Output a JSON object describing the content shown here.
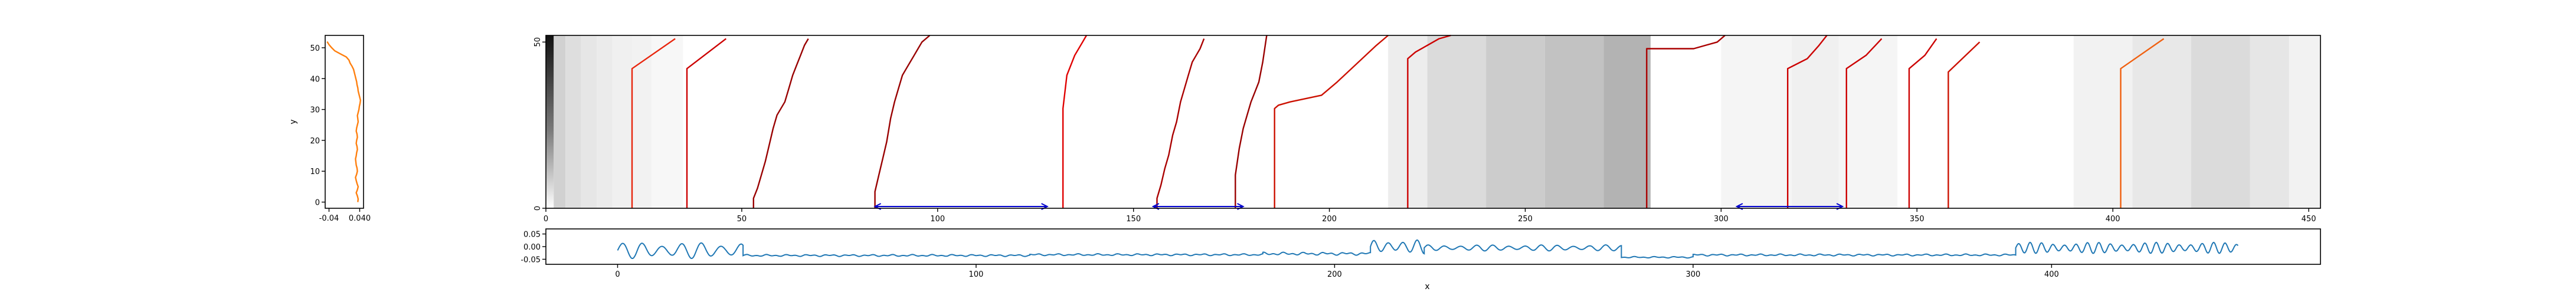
{
  "chart_data": [
    {
      "type": "line",
      "panel": "left-profile",
      "orientation": "vertical",
      "ylabel": "y",
      "xlabel": "",
      "ylim": [
        -2,
        54
      ],
      "xlim": [
        -0.05,
        0.05
      ],
      "x_ticks": [
        -0.04,
        0.04
      ],
      "x_tick_labels": [
        "-0.04",
        "0.040"
      ],
      "y_ticks": [
        0,
        10,
        20,
        30,
        40,
        50
      ],
      "y_tick_labels": [
        "0",
        "10",
        "20",
        "30",
        "40",
        "50"
      ],
      "series": [
        {
          "color": "#ff7f0e",
          "y": [
            0,
            1,
            2,
            3,
            4,
            5,
            6,
            7,
            8,
            9,
            10,
            11,
            12,
            13,
            14,
            15,
            16,
            17,
            18,
            19,
            20,
            21,
            22,
            23,
            24,
            25,
            26,
            27,
            28,
            29,
            30,
            31,
            32,
            33,
            34,
            35,
            36,
            37,
            38,
            39,
            40,
            41,
            42,
            43,
            44,
            45,
            46,
            47,
            48,
            49,
            50,
            51,
            52
          ],
          "x": [
            0.035,
            0.036,
            0.034,
            0.031,
            0.034,
            0.036,
            0.033,
            0.031,
            0.029,
            0.032,
            0.034,
            0.033,
            0.031,
            0.03,
            0.029,
            0.031,
            0.032,
            0.034,
            0.033,
            0.031,
            0.032,
            0.034,
            0.033,
            0.031,
            0.032,
            0.034,
            0.036,
            0.035,
            0.034,
            0.036,
            0.038,
            0.039,
            0.041,
            0.042,
            0.04,
            0.038,
            0.036,
            0.035,
            0.033,
            0.032,
            0.03,
            0.028,
            0.026,
            0.024,
            0.02,
            0.015,
            0.012,
            0.005,
            -0.01,
            -0.025,
            -0.033,
            -0.04,
            -0.045
          ]
        }
      ]
    },
    {
      "type": "heatmap",
      "panel": "main-heatmap",
      "colormap": "Greys",
      "x_range": [
        0,
        453
      ],
      "y_range": [
        0,
        52
      ],
      "x_ticks": [
        0,
        50,
        100,
        150,
        200,
        250,
        300,
        350,
        400,
        450
      ],
      "x_tick_labels": [
        "0",
        "50",
        "100",
        "150",
        "200",
        "250",
        "300",
        "350",
        "400",
        "450"
      ],
      "y_ticks": [
        0,
        50
      ],
      "y_tick_labels": [
        "0",
        "50"
      ],
      "column_shading": [
        {
          "x0": 0,
          "x1": 2,
          "v": 0.85
        },
        {
          "x0": 2,
          "x1": 5,
          "v": 0.18
        },
        {
          "x0": 5,
          "x1": 9,
          "v": 0.13
        },
        {
          "x0": 9,
          "x1": 13,
          "v": 0.1
        },
        {
          "x0": 13,
          "x1": 17,
          "v": 0.08
        },
        {
          "x0": 17,
          "x1": 22,
          "v": 0.06
        },
        {
          "x0": 22,
          "x1": 27,
          "v": 0.05
        },
        {
          "x0": 27,
          "x1": 35,
          "v": 0.03
        },
        {
          "x0": 215,
          "x1": 225,
          "v": 0.07
        },
        {
          "x0": 225,
          "x1": 240,
          "v": 0.14
        },
        {
          "x0": 240,
          "x1": 255,
          "v": 0.2
        },
        {
          "x0": 255,
          "x1": 270,
          "v": 0.24
        },
        {
          "x0": 270,
          "x1": 282,
          "v": 0.3
        },
        {
          "x0": 300,
          "x1": 318,
          "v": 0.04
        },
        {
          "x0": 318,
          "x1": 330,
          "v": 0.06
        },
        {
          "x0": 330,
          "x1": 345,
          "v": 0.04
        },
        {
          "x0": 390,
          "x1": 405,
          "v": 0.05
        },
        {
          "x0": 405,
          "x1": 420,
          "v": 0.09
        },
        {
          "x0": 420,
          "x1": 435,
          "v": 0.14
        },
        {
          "x0": 435,
          "x1": 445,
          "v": 0.1
        },
        {
          "x0": 445,
          "x1": 453,
          "v": 0.05
        }
      ],
      "overlay_lines": [
        {
          "color": "#e8250d",
          "points": [
            [
              22,
              0
            ],
            [
              22,
              42
            ],
            [
              33,
              51
            ]
          ]
        },
        {
          "color": "#cc0000",
          "points": [
            [
              36,
              0
            ],
            [
              36,
              42
            ],
            [
              46,
              51
            ]
          ]
        },
        {
          "color": "#990000",
          "points": [
            [
              53,
              0
            ],
            [
              53,
              3
            ],
            [
              54,
              6
            ],
            [
              55,
              10
            ],
            [
              56,
              14
            ],
            [
              57,
              19
            ],
            [
              58,
              24
            ],
            [
              59,
              28
            ],
            [
              61,
              32
            ],
            [
              62,
              36
            ],
            [
              63,
              40
            ],
            [
              64,
              43
            ],
            [
              65,
              46
            ],
            [
              66,
              49
            ],
            [
              67,
              51
            ]
          ]
        },
        {
          "color": "#990000",
          "points": [
            [
              84,
              0
            ],
            [
              84,
              5
            ],
            [
              85,
              10
            ],
            [
              86,
              15
            ],
            [
              87,
              20
            ],
            [
              88,
              27
            ],
            [
              89,
              32
            ],
            [
              90,
              36
            ],
            [
              91,
              40
            ],
            [
              92,
              42
            ],
            [
              93,
              44
            ],
            [
              94,
              46
            ],
            [
              95,
              48
            ],
            [
              96,
              50
            ],
            [
              98,
              52
            ]
          ]
        },
        {
          "color": "#e00000",
          "points": [
            [
              132,
              0
            ],
            [
              132,
              30
            ],
            [
              133,
              40
            ],
            [
              135,
              46
            ],
            [
              137,
              50
            ],
            [
              138,
              52
            ]
          ]
        },
        {
          "color": "#aa0000",
          "points": [
            [
              156,
              0
            ],
            [
              156,
              3
            ],
            [
              157,
              7
            ],
            [
              158,
              12
            ],
            [
              159,
              16
            ],
            [
              160,
              22
            ],
            [
              161,
              26
            ],
            [
              162,
              32
            ],
            [
              163,
              36
            ],
            [
              164,
              40
            ],
            [
              165,
              44
            ],
            [
              166,
              46
            ],
            [
              167,
              48
            ],
            [
              168,
              51
            ]
          ]
        },
        {
          "color": "#990000",
          "points": [
            [
              176,
              0
            ],
            [
              176,
              10
            ],
            [
              177,
              18
            ],
            [
              178,
              24
            ],
            [
              179,
              28
            ],
            [
              180,
              32
            ],
            [
              181,
              35
            ],
            [
              182,
              38
            ],
            [
              183,
              44
            ],
            [
              184,
              52
            ]
          ]
        },
        {
          "color": "#cc1000",
          "points": [
            [
              186,
              0
            ],
            [
              186,
              30
            ],
            [
              187,
              31
            ],
            [
              190,
              32
            ],
            [
              198,
              34
            ],
            [
              202,
              38
            ],
            [
              212,
              49
            ],
            [
              215,
              52
            ]
          ]
        },
        {
          "color": "#cc0000",
          "points": [
            [
              220,
              0
            ],
            [
              220,
              45
            ],
            [
              222,
              47
            ],
            [
              225,
              49
            ],
            [
              228,
              51
            ],
            [
              231,
              52
            ]
          ]
        },
        {
          "color": "#aa0000",
          "points": [
            [
              281,
              0
            ],
            [
              281,
              48
            ],
            [
              293,
              48
            ],
            [
              296,
              49
            ],
            [
              299,
              50
            ],
            [
              301,
              52
            ]
          ]
        },
        {
          "color": "#cc0000",
          "points": [
            [
              317,
              0
            ],
            [
              317,
              42
            ],
            [
              322,
              45
            ],
            [
              325,
              49
            ],
            [
              327,
              52
            ]
          ]
        },
        {
          "color": "#cc0000",
          "points": [
            [
              332,
              0
            ],
            [
              332,
              42
            ],
            [
              337,
              46
            ],
            [
              341,
              51
            ]
          ]
        },
        {
          "color": "#cc0000",
          "points": [
            [
              348,
              0
            ],
            [
              348,
              42
            ],
            [
              352,
              46
            ],
            [
              355,
              51
            ]
          ]
        },
        {
          "color": "#cc1000",
          "points": [
            [
              358,
              0
            ],
            [
              358,
              41
            ],
            [
              366,
              50
            ]
          ]
        },
        {
          "color": "#f06010",
          "points": [
            [
              402,
              0
            ],
            [
              402,
              42
            ],
            [
              413,
              51
            ]
          ]
        }
      ],
      "brackets": [
        {
          "x0": 84,
          "x1": 128
        },
        {
          "x0": 155,
          "x1": 178
        },
        {
          "x0": 304,
          "x1": 331
        }
      ],
      "bracket_color": "#0000cc"
    },
    {
      "type": "line",
      "panel": "bottom-signal",
      "xlabel": "x",
      "ylabel": "",
      "xlim": [
        -20,
        475
      ],
      "ylim": [
        -0.07,
        0.07
      ],
      "x_ticks": [
        0,
        100,
        200,
        300,
        400
      ],
      "x_tick_labels": [
        "0",
        "100",
        "200",
        "300",
        "400"
      ],
      "y_ticks": [
        0.05,
        0.0,
        -0.05
      ],
      "y_tick_labels": [
        "0.05",
        "0.00",
        "-0.05"
      ],
      "series": [
        {
          "color": "#1f77b4",
          "segments": [
            {
              "x0": 0,
              "x1": 35,
              "type": "osc",
              "amp": 0.032,
              "period": 5.5,
              "base": -0.015
            },
            {
              "x0": 35,
              "x1": 115,
              "type": "flat",
              "base": -0.035,
              "amp": 0.004
            },
            {
              "x0": 115,
              "x1": 180,
              "type": "flat",
              "base": -0.032,
              "amp": 0.004
            },
            {
              "x0": 180,
              "x1": 210,
              "type": "flat",
              "base": -0.028,
              "amp": 0.006
            },
            {
              "x0": 210,
              "x1": 225,
              "type": "osc",
              "amp": 0.028,
              "period": 4,
              "base": 0.0
            },
            {
              "x0": 225,
              "x1": 280,
              "type": "osc",
              "amp": 0.012,
              "period": 4.5,
              "base": -0.005
            },
            {
              "x0": 280,
              "x1": 300,
              "type": "flat",
              "base": -0.042,
              "amp": 0.003
            },
            {
              "x0": 300,
              "x1": 390,
              "type": "flat",
              "base": -0.033,
              "amp": 0.004
            },
            {
              "x0": 390,
              "x1": 452,
              "type": "osc",
              "amp": 0.022,
              "period": 3.2,
              "base": -0.005
            }
          ]
        }
      ]
    }
  ]
}
